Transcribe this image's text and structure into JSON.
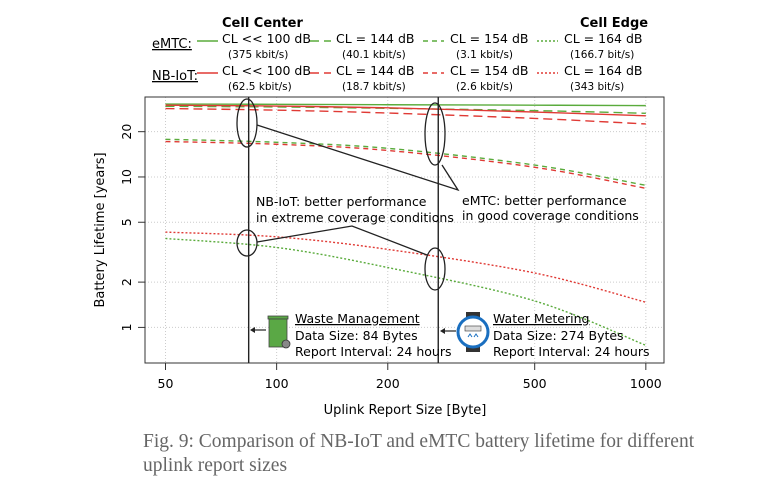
{
  "chart_data": {
    "type": "line",
    "xlabel": "Uplink Report Size [Byte]",
    "ylabel": "Battery Lifetime [years]",
    "x_scale": "log",
    "y_scale": "log",
    "xlim": [
      44,
      1120
    ],
    "ylim": [
      0.58,
      34
    ],
    "x_ticks": [
      50,
      100,
      200,
      500,
      1000
    ],
    "y_ticks": [
      1,
      2,
      5,
      10,
      20
    ],
    "grid": true,
    "legend": {
      "placement": "top",
      "col_headers": [
        "Cell Center",
        "",
        "",
        "Cell Edge"
      ],
      "row_labels": [
        "eMTC:",
        "NB-IoT:"
      ]
    },
    "x": [
      50,
      100,
      200,
      500,
      1000
    ],
    "series": [
      {
        "name": "eMTC CL << 100 dB (375 kbit/s)",
        "tech": "eMTC",
        "cl": "CL << 100 dB",
        "rate": "(375 kbit/s)",
        "color": "#5aab3c",
        "style": "solid",
        "values": [
          30.5,
          30.4,
          30.2,
          30.0,
          29.8
        ]
      },
      {
        "name": "eMTC CL = 144 dB (40.1 kbit/s)",
        "tech": "eMTC",
        "cl": "CL = 144 dB",
        "rate": "(40.1 kbit/s)",
        "color": "#5aab3c",
        "style": "dash",
        "values": [
          29.5,
          29.2,
          28.6,
          27.6,
          26.5
        ]
      },
      {
        "name": "eMTC CL = 154 dB (3.1 kbit/s)",
        "tech": "eMTC",
        "cl": "CL = 154 dB",
        "rate": "(3.1 kbit/s)",
        "color": "#5aab3c",
        "style": "shortdash",
        "values": [
          17.8,
          17.0,
          15.5,
          12.0,
          8.8
        ]
      },
      {
        "name": "eMTC CL = 164 dB (166.7 bit/s)",
        "tech": "eMTC",
        "cl": "CL = 164 dB",
        "rate": "(166.7 bit/s)",
        "color": "#5aab3c",
        "style": "dot",
        "values": [
          3.9,
          3.4,
          2.5,
          1.5,
          0.76
        ]
      },
      {
        "name": "NB-IoT CL << 100 dB (62.5 kbit/s)",
        "tech": "NB-IoT",
        "cl": "CL << 100 dB",
        "rate": "(62.5 kbit/s)",
        "color": "#e03a35",
        "style": "solid",
        "values": [
          30.0,
          29.6,
          28.8,
          27.0,
          25.5
        ]
      },
      {
        "name": "NB-IoT CL = 144 dB (18.7 kbit/s)",
        "tech": "NB-IoT",
        "cl": "CL = 144 dB",
        "rate": "(18.7 kbit/s)",
        "color": "#e03a35",
        "style": "dash",
        "values": [
          28.5,
          27.8,
          26.6,
          24.5,
          22.5
        ]
      },
      {
        "name": "NB-IoT CL = 154 dB (2.6 kbit/s)",
        "tech": "NB-IoT",
        "cl": "CL = 154 dB",
        "rate": "(2.6 kbit/s)",
        "color": "#e03a35",
        "style": "shortdash",
        "values": [
          17.2,
          16.5,
          15.0,
          11.6,
          8.4
        ]
      },
      {
        "name": "NB-IoT CL = 164 dB (343 bit/s)",
        "tech": "NB-IoT",
        "cl": "CL = 164 dB",
        "rate": "(343 bit/s)",
        "color": "#e03a35",
        "style": "dot",
        "values": [
          4.3,
          4.0,
          3.3,
          2.3,
          1.47
        ]
      }
    ],
    "vertical_markers": [
      84,
      274
    ],
    "annotations": {
      "nbiot": [
        "NB-IoT: better performance",
        "in extreme coverage conditions"
      ],
      "emtc": [
        "eMTC: better performance",
        "in good coverage conditions"
      ],
      "waste": {
        "title": "Waste Management",
        "size": "Data Size: 84 Bytes",
        "interval": "Report Interval: 24 hours",
        "icon": "waste-bin-icon"
      },
      "water": {
        "title": "Water Metering",
        "size": "Data Size: 274 Bytes",
        "interval": "Report Interval: 24 hours",
        "icon": "water-meter-icon"
      }
    }
  },
  "caption": "Fig. 9: Comparison of NB-IoT and eMTC battery lifetime for different uplink report sizes"
}
